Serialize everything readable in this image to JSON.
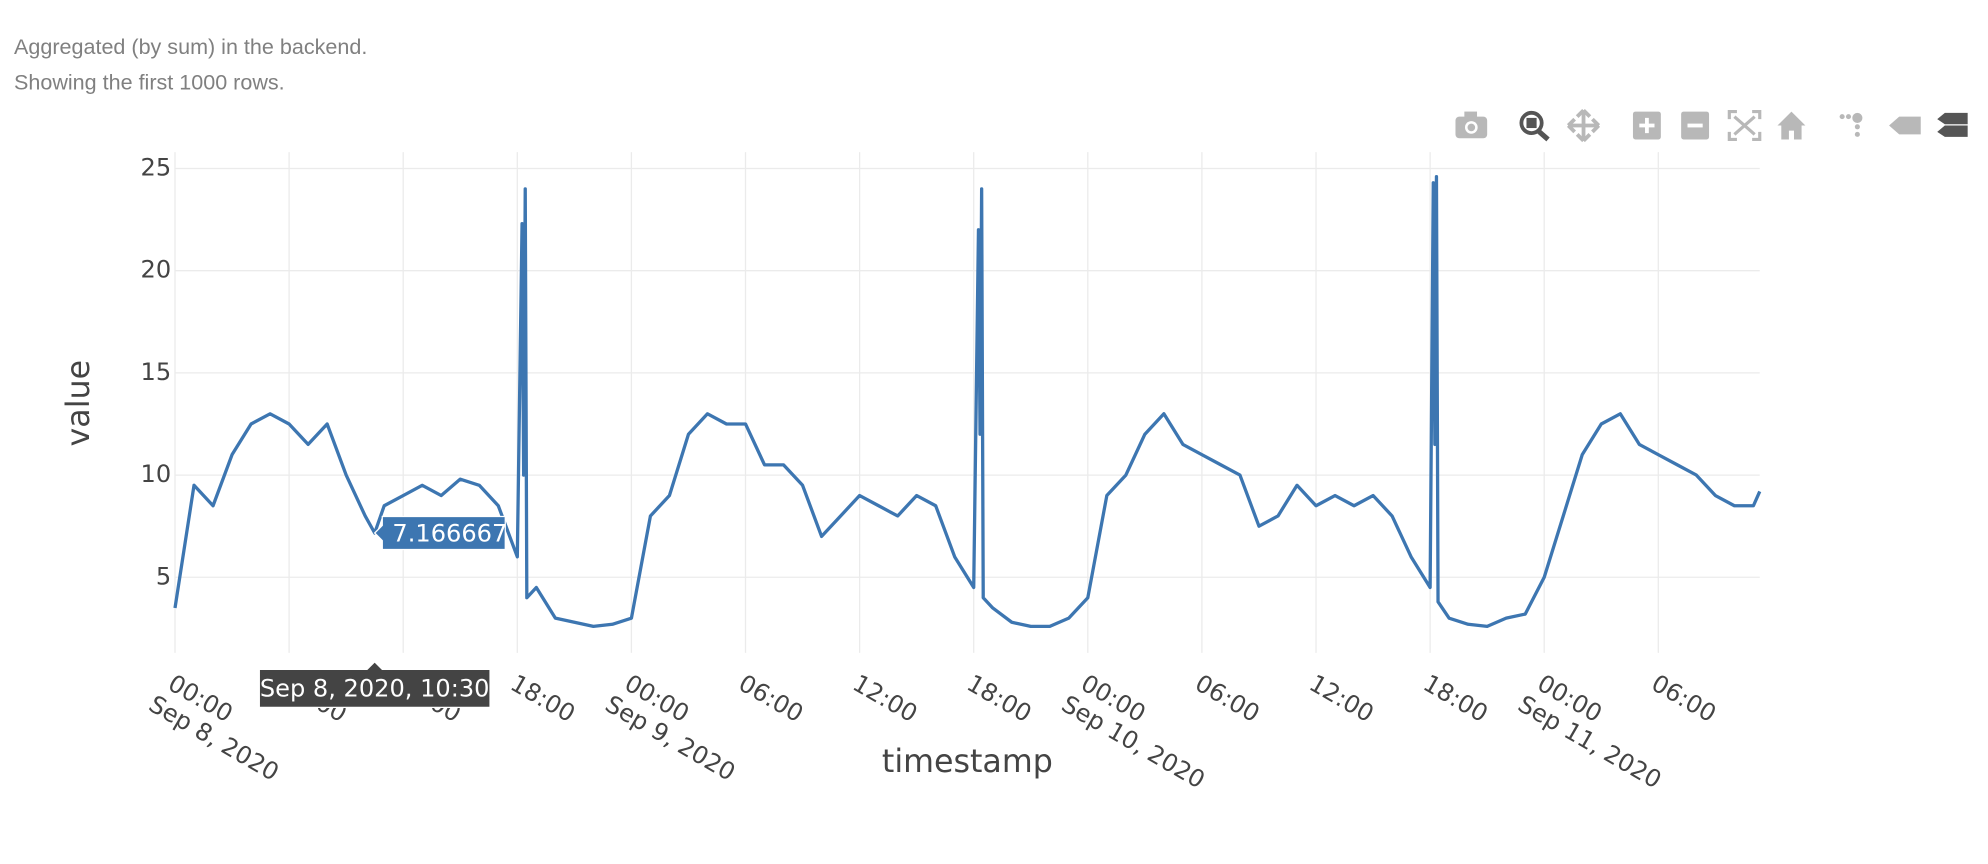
{
  "notes": [
    "Aggregated (by sum) in the backend.",
    "Showing the first 1000 rows."
  ],
  "chart_data": {
    "type": "line",
    "x_label": "timestamp",
    "y_label": "value",
    "x": [
      "2020-09-08 00:00",
      "2020-09-08 01:00",
      "2020-09-08 02:00",
      "2020-09-08 03:00",
      "2020-09-08 04:00",
      "2020-09-08 05:00",
      "2020-09-08 06:00",
      "2020-09-08 07:00",
      "2020-09-08 08:00",
      "2020-09-08 09:00",
      "2020-09-08 10:00",
      "2020-09-08 10:30",
      "2020-09-08 11:00",
      "2020-09-08 12:00",
      "2020-09-08 13:00",
      "2020-09-08 14:00",
      "2020-09-08 15:00",
      "2020-09-08 16:00",
      "2020-09-08 17:00",
      "2020-09-08 18:00",
      "2020-09-08 18:15",
      "2020-09-08 18:20",
      "2020-09-08 18:25",
      "2020-09-08 18:30",
      "2020-09-08 19:00",
      "2020-09-08 20:00",
      "2020-09-08 21:00",
      "2020-09-08 22:00",
      "2020-09-08 23:00",
      "2020-09-09 00:00",
      "2020-09-09 01:00",
      "2020-09-09 02:00",
      "2020-09-09 03:00",
      "2020-09-09 04:00",
      "2020-09-09 05:00",
      "2020-09-09 06:00",
      "2020-09-09 07:00",
      "2020-09-09 08:00",
      "2020-09-09 09:00",
      "2020-09-09 10:00",
      "2020-09-09 11:00",
      "2020-09-09 12:00",
      "2020-09-09 13:00",
      "2020-09-09 14:00",
      "2020-09-09 15:00",
      "2020-09-09 16:00",
      "2020-09-09 17:00",
      "2020-09-09 18:00",
      "2020-09-09 18:15",
      "2020-09-09 18:20",
      "2020-09-09 18:25",
      "2020-09-09 18:30",
      "2020-09-09 19:00",
      "2020-09-09 20:00",
      "2020-09-09 21:00",
      "2020-09-09 22:00",
      "2020-09-09 23:00",
      "2020-09-10 00:00",
      "2020-09-10 01:00",
      "2020-09-10 02:00",
      "2020-09-10 03:00",
      "2020-09-10 04:00",
      "2020-09-10 05:00",
      "2020-09-10 06:00",
      "2020-09-10 07:00",
      "2020-09-10 08:00",
      "2020-09-10 09:00",
      "2020-09-10 10:00",
      "2020-09-10 11:00",
      "2020-09-10 12:00",
      "2020-09-10 13:00",
      "2020-09-10 14:00",
      "2020-09-10 15:00",
      "2020-09-10 16:00",
      "2020-09-10 17:00",
      "2020-09-10 18:00",
      "2020-09-10 18:10",
      "2020-09-10 18:15",
      "2020-09-10 18:20",
      "2020-09-10 18:25",
      "2020-09-10 19:00",
      "2020-09-10 20:00",
      "2020-09-10 21:00",
      "2020-09-10 22:00",
      "2020-09-10 23:00",
      "2020-09-11 00:00",
      "2020-09-11 01:00",
      "2020-09-11 02:00",
      "2020-09-11 03:00",
      "2020-09-11 04:00",
      "2020-09-11 05:00",
      "2020-09-11 06:00",
      "2020-09-11 07:00",
      "2020-09-11 08:00",
      "2020-09-11 09:00",
      "2020-09-11 10:00",
      "2020-09-11 11:00",
      "2020-09-11 11:20"
    ],
    "series": [
      {
        "name": "value",
        "color": "#3d76b1",
        "values": [
          3.5,
          9.5,
          8.5,
          11,
          12.5,
          13,
          12.5,
          11.5,
          12.5,
          10,
          8,
          7.166667,
          8.5,
          9,
          9.5,
          9,
          9.8,
          9.5,
          8.5,
          6,
          22.3,
          10,
          24,
          4,
          4.5,
          3,
          2.8,
          2.6,
          2.7,
          3,
          8,
          9,
          12,
          13,
          12.5,
          12.5,
          10.5,
          10.5,
          9.5,
          7,
          8,
          9,
          8.5,
          8,
          9,
          8.5,
          6,
          4.5,
          22,
          12,
          24,
          4,
          3.5,
          2.8,
          2.6,
          2.6,
          3,
          4,
          9,
          10,
          12,
          13,
          11.5,
          11,
          10.5,
          10,
          7.5,
          8,
          9.5,
          8.5,
          9,
          8.5,
          9,
          8,
          6,
          4.5,
          24.3,
          11.5,
          24.6,
          3.8,
          3,
          2.7,
          2.6,
          3,
          3.2,
          5,
          8,
          11,
          12.5,
          13,
          11.5,
          11,
          10.5,
          10,
          9,
          8.5,
          8.5,
          9.2
        ]
      }
    ],
    "xlim": [
      "2020-09-08 00:00",
      "2020-09-11 11:20"
    ],
    "xticks": [
      {
        "value": "2020-09-08 00:00",
        "label": "00:00\nSep 8, 2020"
      },
      {
        "value": "2020-09-08 06:00",
        "label": "06:00"
      },
      {
        "value": "2020-09-08 12:00",
        "label": "12:00"
      },
      {
        "value": "2020-09-08 18:00",
        "label": "18:00"
      },
      {
        "value": "2020-09-09 00:00",
        "label": "00:00\nSep 9, 2020"
      },
      {
        "value": "2020-09-09 06:00",
        "label": "06:00"
      },
      {
        "value": "2020-09-09 12:00",
        "label": "12:00"
      },
      {
        "value": "2020-09-09 18:00",
        "label": "18:00"
      },
      {
        "value": "2020-09-10 00:00",
        "label": "00:00\nSep 10, 2020"
      },
      {
        "value": "2020-09-10 06:00",
        "label": "06:00"
      },
      {
        "value": "2020-09-10 12:00",
        "label": "12:00"
      },
      {
        "value": "2020-09-10 18:00",
        "label": "18:00"
      },
      {
        "value": "2020-09-11 00:00",
        "label": "00:00\nSep 11, 2020"
      },
      {
        "value": "2020-09-11 06:00",
        "label": "06:00"
      }
    ],
    "ylim": [
      1.3,
      25.8
    ],
    "yticks": [
      5,
      10,
      15,
      20,
      25
    ],
    "grid": true,
    "hover": {
      "x": "2020-09-08 10:30",
      "x_label": "Sep 8, 2020, 10:30",
      "value": 7.166667
    }
  }
}
